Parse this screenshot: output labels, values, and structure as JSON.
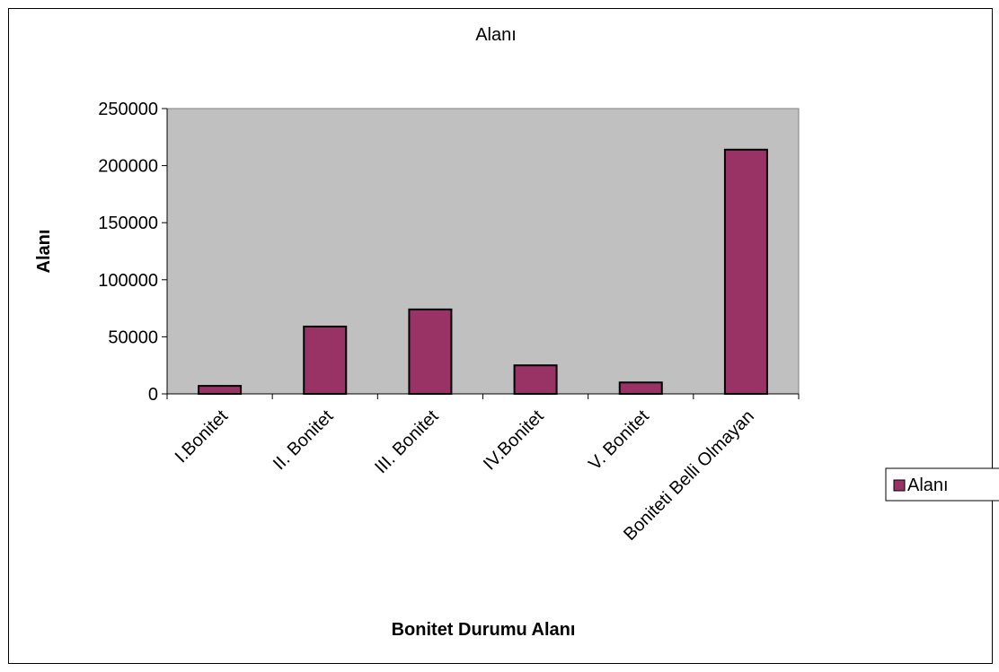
{
  "chart_data": {
    "type": "bar",
    "title": "Alanı",
    "xlabel": "Bonitet Durumu Alanı",
    "ylabel": "Alanı",
    "categories": [
      "I.Bonitet",
      "II. Bonitet",
      "III. Bonitet",
      "IV.Bonitet",
      "V. Bonitet",
      "Boniteti Belli Olmayan"
    ],
    "series": [
      {
        "name": "Alanı",
        "values": [
          7000,
          59000,
          74000,
          25000,
          10000,
          214000
        ]
      }
    ],
    "ylim": [
      0,
      250000
    ],
    "yticks": [
      "250000",
      "200000",
      "150000",
      "100000",
      "50000",
      "0"
    ],
    "grid": false,
    "legend": "right",
    "colors": {
      "bar": "#993366",
      "plot_bg": "#c0c0c0",
      "border": "#000000"
    }
  }
}
